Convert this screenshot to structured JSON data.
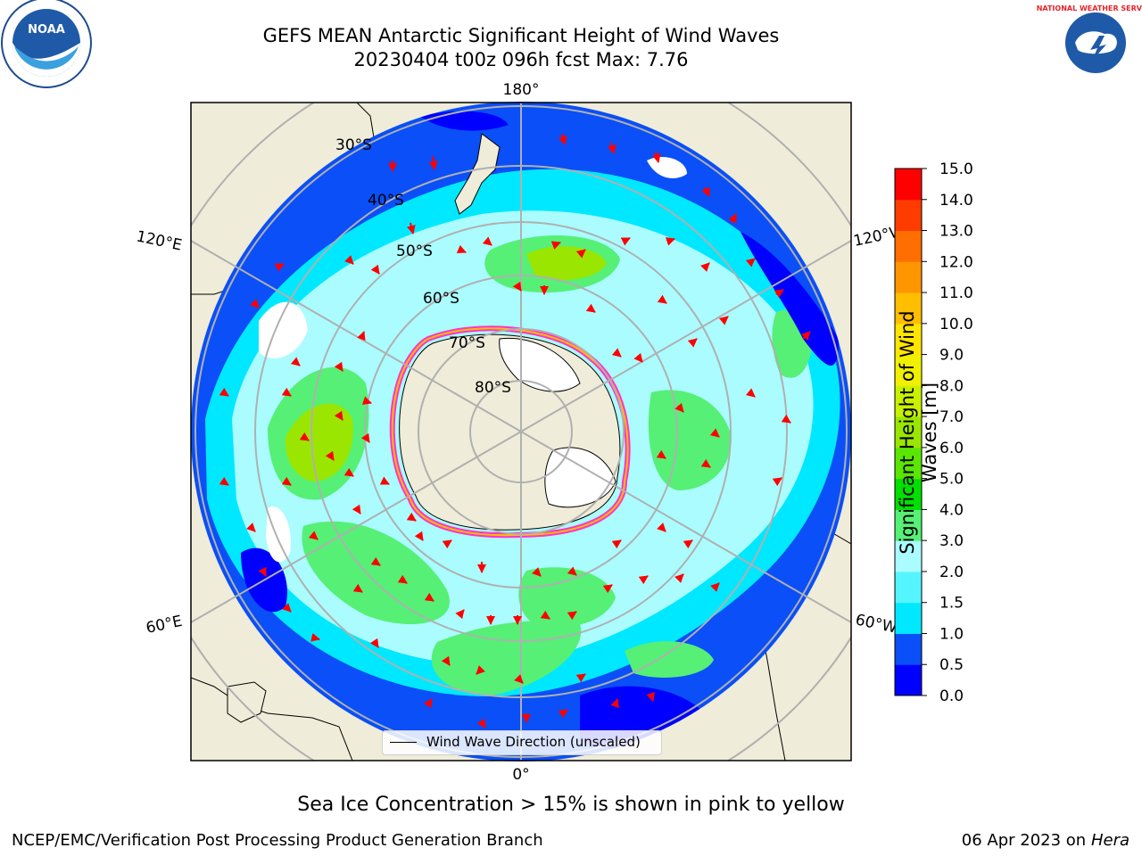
{
  "title": {
    "line1": "GEFS MEAN Antarctic Significant Height of Wind Waves",
    "line2": "20230404 t00z 096h fcst   Max: 7.76"
  },
  "map": {
    "longitude_labels": [
      "180°",
      "120°E",
      "120°W",
      "60°E",
      "60°W",
      "0°"
    ],
    "latitude_labels": [
      "30°S",
      "40°S",
      "50°S",
      "60°S",
      "70°S",
      "80°S"
    ],
    "legend_label": "Wind Wave Direction (unscaled)"
  },
  "colorbar": {
    "label": "Significant Height of Wind Waves [m]",
    "ticks": [
      "0.0",
      "0.5",
      "1.0",
      "1.5",
      "2.0",
      "3.0",
      "4.0",
      "5.0",
      "6.0",
      "7.0",
      "8.0",
      "9.0",
      "10.0",
      "11.0",
      "12.0",
      "13.0",
      "14.0",
      "15.0"
    ],
    "colors": [
      "#0000ff",
      "#0a4ff7",
      "#00e8ff",
      "#55f5ff",
      "#aafcff",
      "#55f075",
      "#00e000",
      "#5ae600",
      "#9ae600",
      "#c8f000",
      "#f0f000",
      "#ffe600",
      "#ffbe00",
      "#ff9600",
      "#ff6e00",
      "#ff3c00",
      "#ff0000"
    ]
  },
  "colors": {
    "land": "#efecd9",
    "ice_region": "#ffffff",
    "arrow": "#ff0000",
    "sea_ice_edge": "#ff33cc"
  },
  "logos": {
    "noaa": "NOAA",
    "nws": "NATIONAL WEATHER SERVICE"
  },
  "footer": {
    "note": "Sea Ice Concentration > 15% is shown in pink to yellow",
    "left": "NCEP/EMC/Verification Post Processing Product Generation Branch",
    "right_date": "06 Apr 2023 on ",
    "right_host": "Hera"
  }
}
